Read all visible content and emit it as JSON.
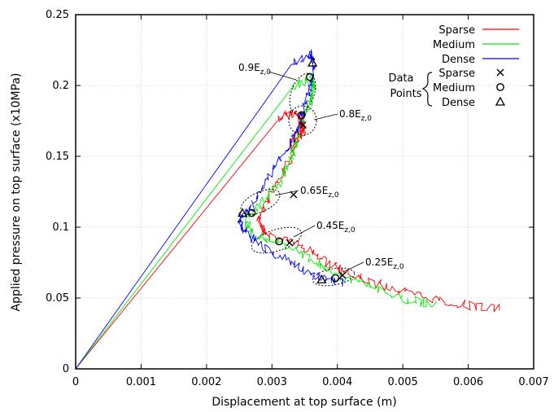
{
  "chart_data": {
    "type": "line",
    "title": "",
    "xlabel": "Displacement at top surface (m)",
    "ylabel": "Applied pressure on top surface (x10MPa)",
    "xlim": [
      0,
      0.007
    ],
    "ylim": [
      0,
      0.25
    ],
    "x_ticks": [
      0,
      0.001,
      0.002,
      0.003,
      0.004,
      0.005,
      0.006,
      0.007
    ],
    "x_tick_labels": [
      "0",
      "0.001",
      "0.002",
      "0.003",
      "0.004",
      "0.005",
      "0.006",
      "0.007"
    ],
    "y_ticks": [
      0,
      0.05,
      0.1,
      0.15,
      0.2,
      0.25
    ],
    "y_tick_labels": [
      "0",
      "0.05",
      "0.1",
      "0.15",
      "0.2",
      "0.25"
    ],
    "grid": true,
    "legend_position": "top-right",
    "series": [
      {
        "name": "Sparse",
        "color": "#ff0000",
        "x": [
          0,
          0.0031,
          0.0033,
          0.00345,
          0.0035,
          0.0033,
          0.0034,
          0.0035,
          0.0033,
          0.003,
          0.0028,
          0.0029,
          0.0033,
          0.0037,
          0.0041,
          0.0046,
          0.0052,
          0.0058,
          0.0065
        ],
        "y": [
          0,
          0.176,
          0.181,
          0.178,
          0.168,
          0.155,
          0.175,
          0.17,
          0.15,
          0.125,
          0.105,
          0.095,
          0.09,
          0.08,
          0.068,
          0.06,
          0.052,
          0.046,
          0.042
        ]
      },
      {
        "name": "Medium",
        "color": "#00ee00",
        "x": [
          0,
          0.0033,
          0.0036,
          0.00365,
          0.0036,
          0.0035,
          0.0034,
          0.0033,
          0.0031,
          0.0028,
          0.0026,
          0.0027,
          0.0031,
          0.0036,
          0.004,
          0.0045,
          0.005,
          0.0055
        ],
        "y": [
          0,
          0.198,
          0.206,
          0.2,
          0.19,
          0.18,
          0.165,
          0.15,
          0.13,
          0.115,
          0.105,
          0.095,
          0.09,
          0.078,
          0.066,
          0.058,
          0.05,
          0.045
        ]
      },
      {
        "name": "Dense",
        "color": "#0000ff",
        "x": [
          0,
          0.0033,
          0.0036,
          0.00365,
          0.0036,
          0.0035,
          0.0034,
          0.0033,
          0.003,
          0.0027,
          0.0025,
          0.0026,
          0.0029,
          0.0033,
          0.0037,
          0.0041
        ],
        "y": [
          0,
          0.215,
          0.222,
          0.215,
          0.2,
          0.185,
          0.17,
          0.16,
          0.14,
          0.115,
          0.105,
          0.095,
          0.085,
          0.075,
          0.065,
          0.06
        ]
      }
    ],
    "data_points": {
      "title_lines": [
        "Data",
        "Points"
      ],
      "sets": [
        {
          "name": "Sparse",
          "marker": "×",
          "points": [
            [
              0.00347,
              0.172
            ],
            [
              0.00333,
              0.123
            ],
            [
              0.00327,
              0.089
            ],
            [
              0.00408,
              0.066
            ]
          ]
        },
        {
          "name": "Medium",
          "marker": "○",
          "points": [
            [
              0.00358,
              0.206
            ],
            [
              0.00345,
              0.179
            ],
            [
              0.00269,
              0.11
            ],
            [
              0.00311,
              0.09
            ],
            [
              0.00397,
              0.064
            ]
          ]
        },
        {
          "name": "Dense",
          "marker": "△",
          "points": [
            [
              0.00362,
              0.216
            ],
            [
              0.00255,
              0.11
            ],
            [
              0.00376,
              0.063
            ]
          ]
        }
      ]
    },
    "annotations": [
      {
        "base": "0.9E",
        "sub": "z,0",
        "x": 0.0031,
        "y": 0.214
      },
      {
        "base": "0.8E",
        "sub": "z,0",
        "x": 0.0036,
        "y": 0.181
      },
      {
        "base": "0.65E",
        "sub": "z,0",
        "x": 0.00336,
        "y": 0.124
      },
      {
        "base": "0.45E",
        "sub": "z,0",
        "x": 0.00332,
        "y": 0.094
      },
      {
        "base": "0.25E",
        "sub": "z,0",
        "x": 0.0041,
        "y": 0.071
      }
    ]
  }
}
